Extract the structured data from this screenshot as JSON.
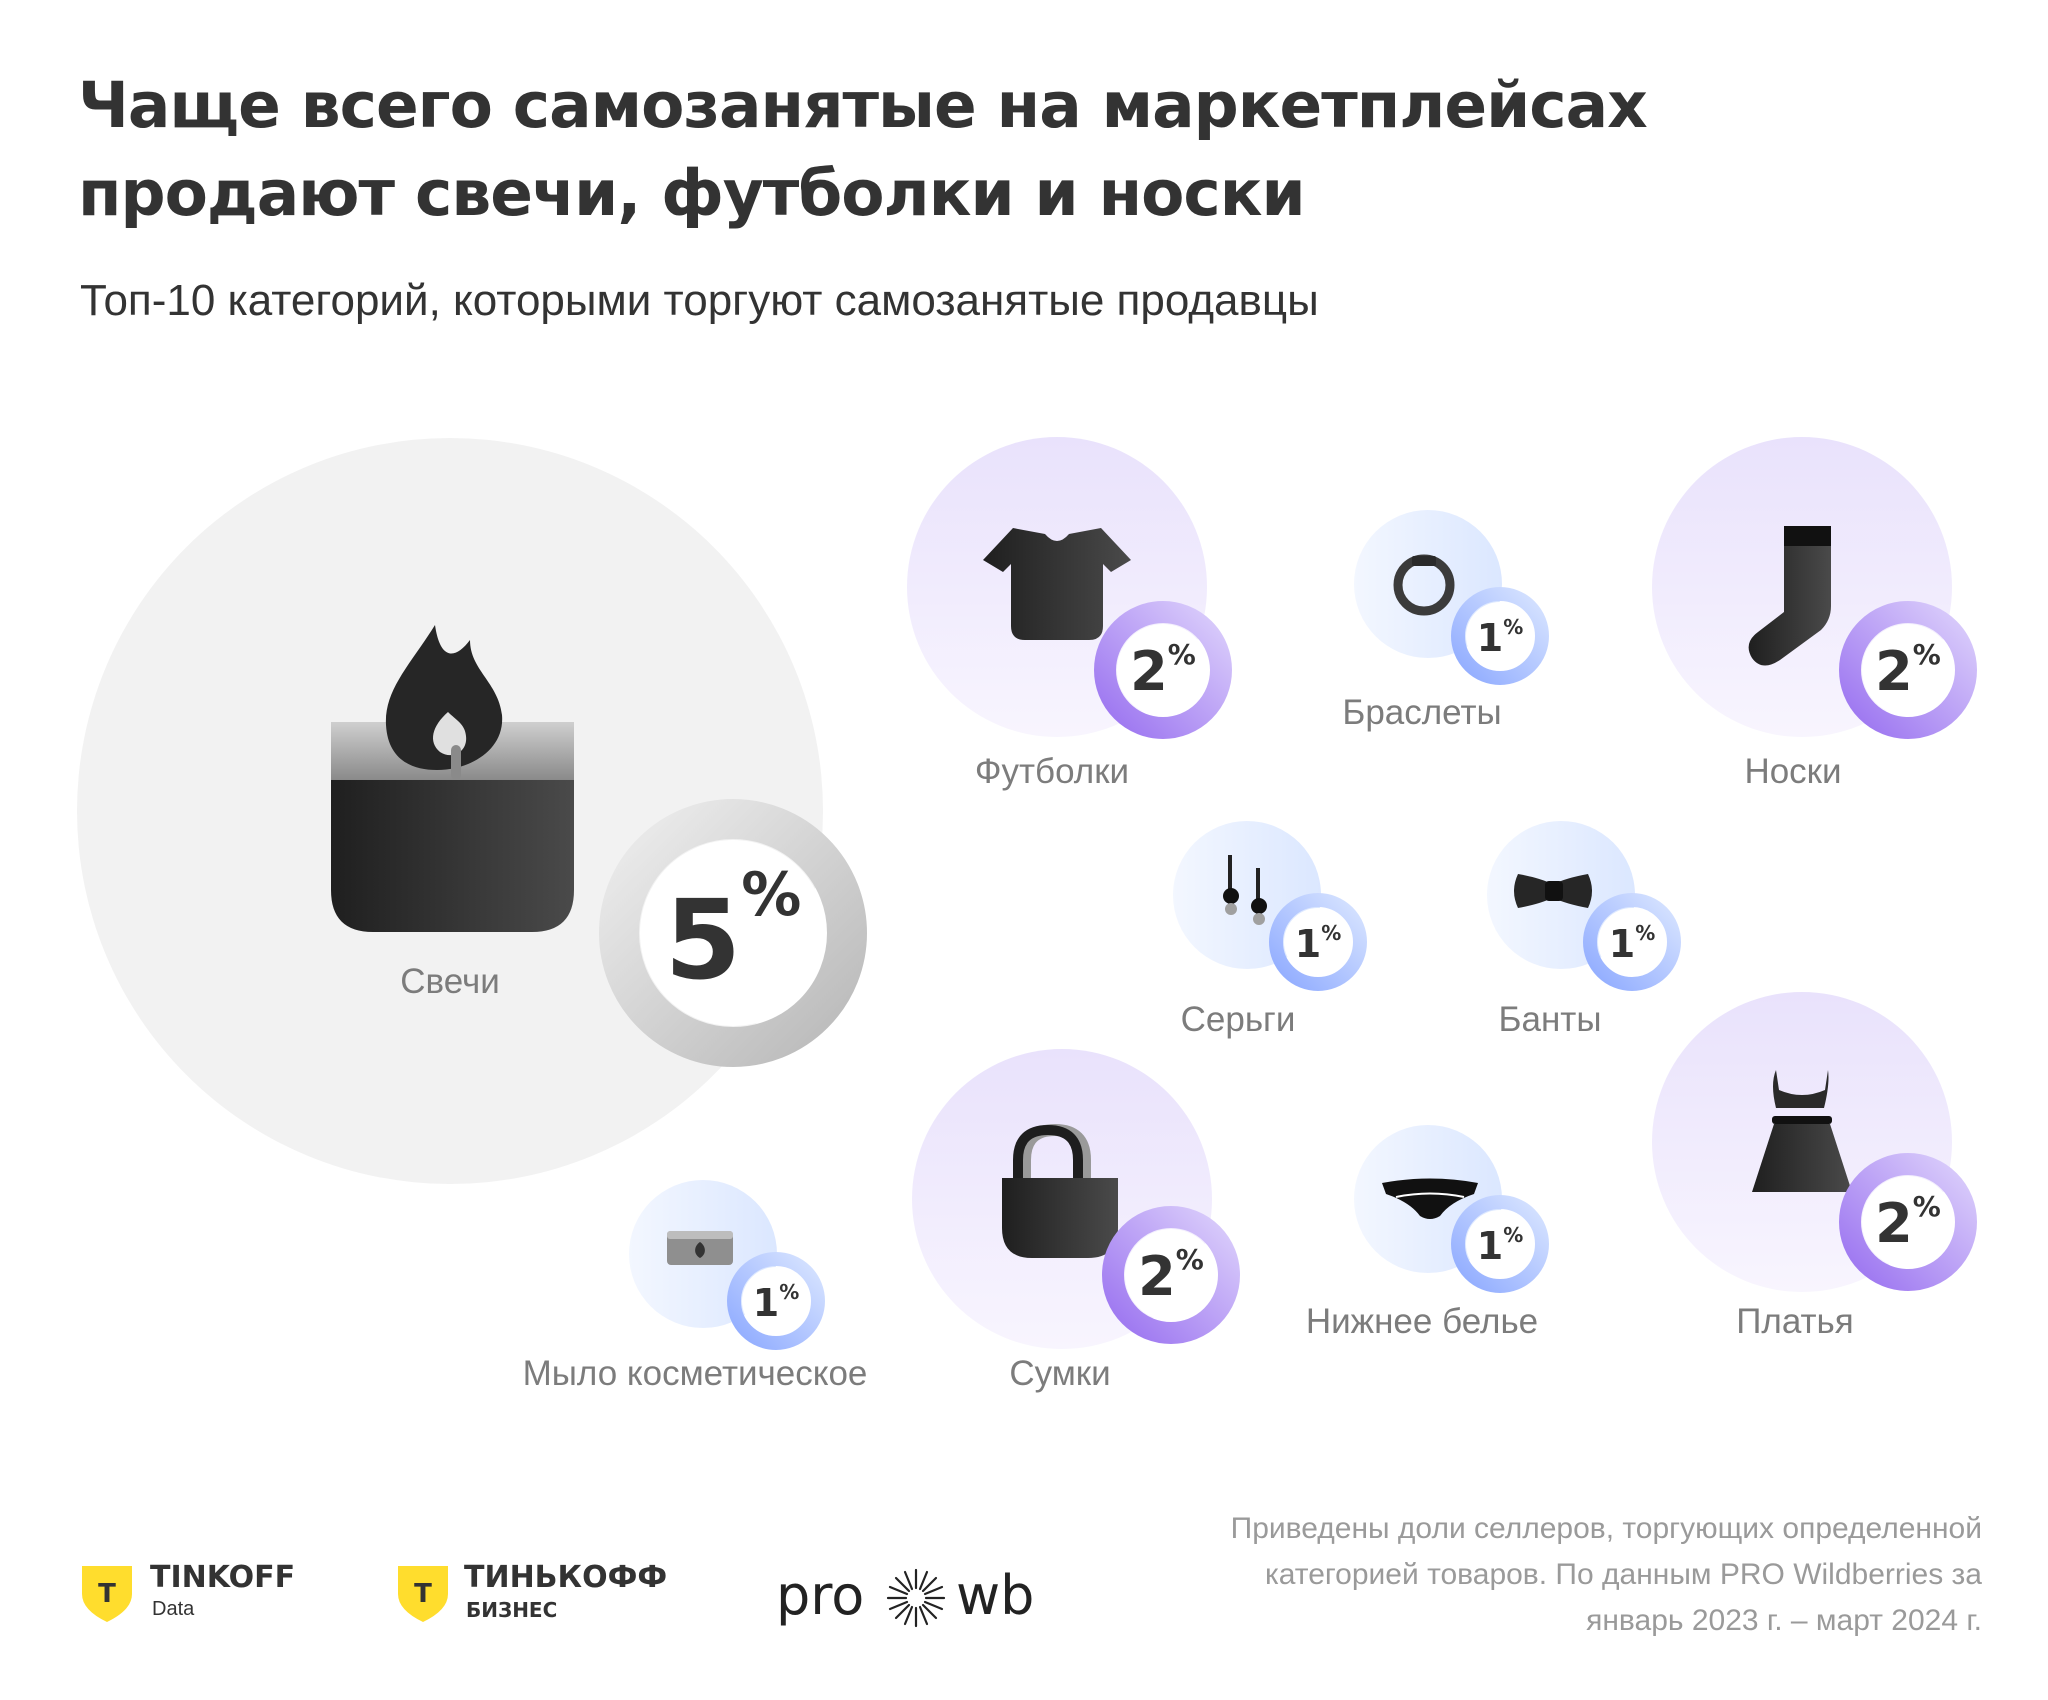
{
  "title": "Чаще всего самозанятые на маркетплейсах продают свечи, футболки и носки",
  "subtitle": "Топ-10 категорий, которыми торгуют самозанятые продавцы",
  "chart_data": {
    "type": "bubble",
    "title": "Чаще всего самозанятые на маркетплейсах продают свечи, футболки и носки",
    "subtitle": "Топ-10 категорий, которыми торгуют самозанятые продавцы",
    "unit": "%",
    "categories": [
      "Свечи",
      "Футболки",
      "Браслеты",
      "Носки",
      "Серьги",
      "Банты",
      "Мыло косметическое",
      "Сумки",
      "Нижнее белье",
      "Платья"
    ],
    "values": [
      5,
      2,
      1,
      2,
      1,
      1,
      1,
      2,
      1,
      2
    ],
    "icons": [
      "candle-icon",
      "tshirt-icon",
      "bracelet-icon",
      "sock-icon",
      "earrings-icon",
      "bow-icon",
      "soap-icon",
      "bag-icon",
      "underwear-icon",
      "dress-icon"
    ],
    "colors": {
      "top": "#f2f2f2",
      "top_ring": "#c9c9c9",
      "mid": "#efe9fd",
      "mid_ring": "#a687f3",
      "small": "#e6efff",
      "small_ring": "#9fb9ff"
    }
  },
  "footnote": "Приведены доли селлеров, торгующих определенной категорией товаров. По данным PRO Wildberries за январь 2023 г. – март 2024 г.",
  "logos": {
    "tinkoff_data": {
      "word": "TINKOFF",
      "sub": "Data",
      "shield_letter": "T"
    },
    "tinkoff_business": {
      "word": "ТИНЬКОФФ",
      "sub": "БИЗНЕС",
      "shield_letter": "T"
    },
    "prowb": {
      "left": "pro",
      "right": "wb"
    }
  }
}
